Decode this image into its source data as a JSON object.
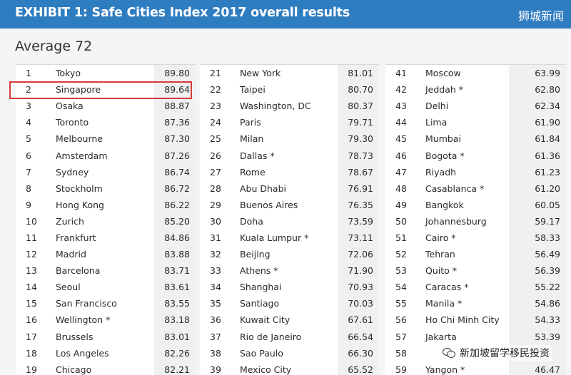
{
  "header": {
    "title": "EXHIBIT 1: Safe Cities Index 2017 overall results",
    "watermark": "狮城新闻"
  },
  "average_label": "Average 72",
  "columns": [
    [
      {
        "rank": "1",
        "city": "Tokyo",
        "score": "89.80"
      },
      {
        "rank": "2",
        "city": "Singapore",
        "score": "89.64"
      },
      {
        "rank": "3",
        "city": "Osaka",
        "score": "88.87"
      },
      {
        "rank": "4",
        "city": "Toronto",
        "score": "87.36"
      },
      {
        "rank": "5",
        "city": "Melbourne",
        "score": "87.30"
      },
      {
        "rank": "6",
        "city": "Amsterdam",
        "score": "87.26"
      },
      {
        "rank": "7",
        "city": "Sydney",
        "score": "86.74"
      },
      {
        "rank": "8",
        "city": "Stockholm",
        "score": "86.72"
      },
      {
        "rank": "9",
        "city": "Hong Kong",
        "score": "86.22"
      },
      {
        "rank": "10",
        "city": "Zurich",
        "score": "85.20"
      },
      {
        "rank": "11",
        "city": "Frankfurt",
        "score": "84.86"
      },
      {
        "rank": "12",
        "city": "Madrid",
        "score": "83.88"
      },
      {
        "rank": "13",
        "city": "Barcelona",
        "score": "83.71"
      },
      {
        "rank": "14",
        "city": "Seoul",
        "score": "83.61"
      },
      {
        "rank": "15",
        "city": "San Francisco",
        "score": "83.55"
      },
      {
        "rank": "16",
        "city": "Wellington *",
        "score": "83.18"
      },
      {
        "rank": "17",
        "city": "Brussels",
        "score": "83.01"
      },
      {
        "rank": "18",
        "city": "Los Angeles",
        "score": "82.26"
      },
      {
        "rank": "19",
        "city": "Chicago",
        "score": "82.21"
      }
    ],
    [
      {
        "rank": "21",
        "city": "New York",
        "score": "81.01"
      },
      {
        "rank": "22",
        "city": "Taipei",
        "score": "80.70"
      },
      {
        "rank": "23",
        "city": "Washington, DC",
        "score": "80.37"
      },
      {
        "rank": "24",
        "city": "Paris",
        "score": "79.71"
      },
      {
        "rank": "25",
        "city": "Milan",
        "score": "79.30"
      },
      {
        "rank": "26",
        "city": "Dallas *",
        "score": "78.73"
      },
      {
        "rank": "27",
        "city": "Rome",
        "score": "78.67"
      },
      {
        "rank": "28",
        "city": "Abu Dhabi",
        "score": "76.91"
      },
      {
        "rank": "29",
        "city": "Buenos Aires",
        "score": "76.35"
      },
      {
        "rank": "30",
        "city": "Doha",
        "score": "73.59"
      },
      {
        "rank": "31",
        "city": "Kuala Lumpur *",
        "score": "73.11"
      },
      {
        "rank": "32",
        "city": "Beijing",
        "score": "72.06"
      },
      {
        "rank": "33",
        "city": "Athens *",
        "score": "71.90"
      },
      {
        "rank": "34",
        "city": "Shanghai",
        "score": "70.93"
      },
      {
        "rank": "35",
        "city": "Santiago",
        "score": "70.03"
      },
      {
        "rank": "36",
        "city": "Kuwait City",
        "score": "67.61"
      },
      {
        "rank": "37",
        "city": "Rio de Janeiro",
        "score": "66.54"
      },
      {
        "rank": "38",
        "city": "Sao Paulo",
        "score": "66.30"
      },
      {
        "rank": "39",
        "city": "Mexico City",
        "score": "65.52"
      }
    ],
    [
      {
        "rank": "41",
        "city": "Moscow",
        "score": "63.99"
      },
      {
        "rank": "42",
        "city": "Jeddah *",
        "score": "62.80"
      },
      {
        "rank": "43",
        "city": "Delhi",
        "score": "62.34"
      },
      {
        "rank": "44",
        "city": "Lima",
        "score": "61.90"
      },
      {
        "rank": "45",
        "city": "Mumbai",
        "score": "61.84"
      },
      {
        "rank": "46",
        "city": "Bogota *",
        "score": "61.36"
      },
      {
        "rank": "47",
        "city": "Riyadh",
        "score": "61.23"
      },
      {
        "rank": "48",
        "city": "Casablanca *",
        "score": "61.20"
      },
      {
        "rank": "49",
        "city": "Bangkok",
        "score": "60.05"
      },
      {
        "rank": "50",
        "city": "Johannesburg",
        "score": "59.17"
      },
      {
        "rank": "51",
        "city": "Cairo *",
        "score": "58.33"
      },
      {
        "rank": "52",
        "city": "Tehran",
        "score": "56.49"
      },
      {
        "rank": "53",
        "city": "Quito *",
        "score": "56.39"
      },
      {
        "rank": "54",
        "city": "Caracas *",
        "score": "55.22"
      },
      {
        "rank": "55",
        "city": "Manila *",
        "score": "54.86"
      },
      {
        "rank": "56",
        "city": "Ho Chi Minh City",
        "score": "54.33"
      },
      {
        "rank": "57",
        "city": "Jakarta",
        "score": "53.39"
      },
      {
        "rank": "58",
        "city": "",
        "score": ""
      },
      {
        "rank": "59",
        "city": "Yangon *",
        "score": "46.47"
      }
    ]
  ],
  "bottom_watermark": "新加坡留学移民投资",
  "colors": {
    "header_bg": "#2f7dc1",
    "highlight": "#d63b3b"
  }
}
